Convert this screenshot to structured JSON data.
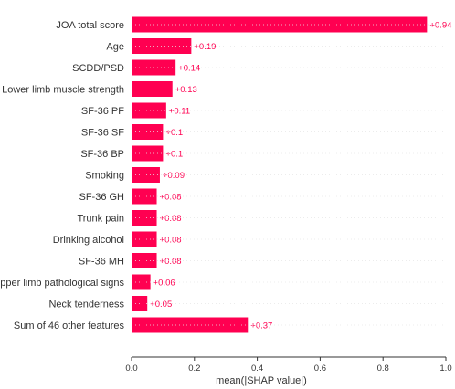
{
  "chart_data": {
    "type": "bar",
    "orientation": "horizontal",
    "title": "",
    "xlabel": "mean(|SHAP value|)",
    "ylabel": "",
    "xlim": [
      0,
      1.0
    ],
    "x_ticks": [
      0.0,
      0.2,
      0.4,
      0.6,
      0.8,
      1.0
    ],
    "x_tick_labels": [
      "0.0",
      "0.2",
      "0.4",
      "0.6",
      "0.8",
      "1.0"
    ],
    "grid": false,
    "categories": [
      "JOA total score",
      "Age",
      "SCDD/PSD",
      "Lower limb muscle strength",
      "SF-36 PF",
      "SF-36 SF",
      "SF-36 BP",
      "Smoking",
      "SF-36 GH",
      "Trunk pain",
      "Drinking alcohol",
      "SF-36 MH",
      "Upper limb pathological signs",
      "Neck tenderness",
      "Sum of 46 other features"
    ],
    "values": [
      0.94,
      0.19,
      0.14,
      0.13,
      0.11,
      0.1,
      0.1,
      0.09,
      0.08,
      0.08,
      0.08,
      0.08,
      0.06,
      0.05,
      0.37
    ],
    "value_labels": [
      "+0.94",
      "+0.19",
      "+0.14",
      "+0.13",
      "+0.11",
      "+0.1",
      "+0.1",
      "+0.09",
      "+0.08",
      "+0.08",
      "+0.08",
      "+0.08",
      "+0.06",
      "+0.05",
      "+0.37"
    ],
    "bar_color": "#ff0051",
    "label_color": "#ff0051"
  }
}
